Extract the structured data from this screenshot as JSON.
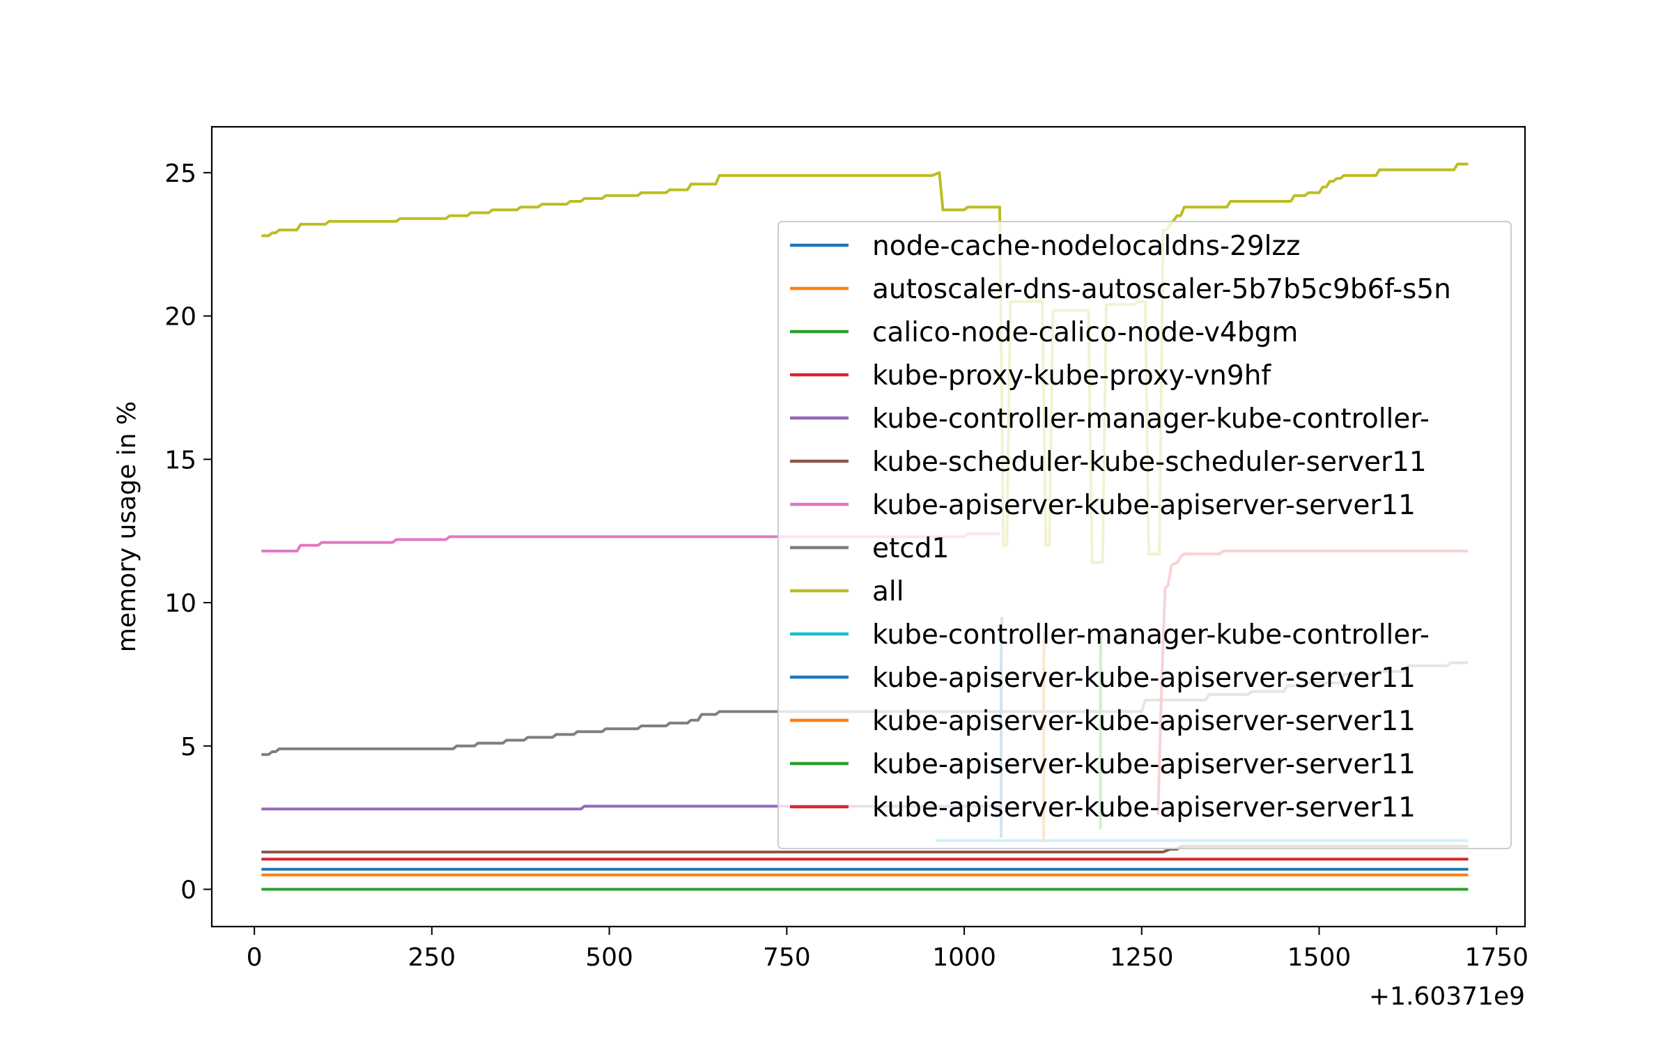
{
  "chart_data": {
    "type": "line",
    "xlabel": "",
    "ylabel": "memory usage in %",
    "x_offset_label": "+1.60371e9",
    "xlim": [
      -60,
      1790
    ],
    "ylim": [
      -1.3,
      26.6
    ],
    "x_ticks": [
      0,
      250,
      500,
      750,
      1000,
      1250,
      1500,
      1750
    ],
    "y_ticks": [
      0,
      5,
      10,
      15,
      20,
      25
    ],
    "grid": false,
    "legend_position": "upper right",
    "series": [
      {
        "name": "node-cache-nodelocaldns-29lzz",
        "color": "#1f77b4",
        "x": [
          10,
          1710
        ],
        "y": [
          0.7,
          0.7
        ]
      },
      {
        "name": "autoscaler-dns-autoscaler-5b7b5c9b6f-s5n",
        "color": "#ff7f0e",
        "x": [
          10,
          1710
        ],
        "y": [
          0.5,
          0.5
        ]
      },
      {
        "name": "calico-node-calico-node-v4bgm",
        "color": "#2ca02c",
        "x": [
          10,
          1710
        ],
        "y": [
          0.0,
          0.0
        ]
      },
      {
        "name": "kube-proxy-kube-proxy-vn9hf",
        "color": "#d62728",
        "x": [
          10,
          1710
        ],
        "y": [
          1.05,
          1.05
        ]
      },
      {
        "name": "kube-controller-manager-kube-controller-",
        "color": "#9467bd",
        "x": [
          10,
          460,
          465,
          1050
        ],
        "y": [
          2.8,
          2.8,
          2.9,
          2.9
        ]
      },
      {
        "name": "kube-scheduler-kube-scheduler-server11",
        "color": "#8c564b",
        "x": [
          10,
          1280,
          1290,
          1300,
          1305,
          1710
        ],
        "y": [
          1.3,
          1.3,
          1.4,
          1.4,
          1.5,
          1.5
        ]
      },
      {
        "name": "kube-apiserver-kube-apiserver-server11",
        "color": "#e377c2",
        "x": [
          10,
          60,
          65,
          90,
          95,
          195,
          200,
          270,
          275,
          1000,
          1005,
          1050
        ],
        "y": [
          11.8,
          11.8,
          12.0,
          12.0,
          12.1,
          12.1,
          12.2,
          12.2,
          12.3,
          12.3,
          12.4,
          12.4
        ]
      },
      {
        "name": "etcd1",
        "color": "#7f7f7f",
        "x": [
          10,
          20,
          25,
          30,
          35,
          280,
          285,
          310,
          315,
          350,
          355,
          380,
          385,
          420,
          425,
          450,
          455,
          490,
          495,
          540,
          545,
          580,
          585,
          610,
          615,
          625,
          630,
          650,
          655,
          1250,
          1255,
          1340,
          1345,
          1400,
          1405,
          1450,
          1455,
          1480,
          1485,
          1530,
          1535,
          1580,
          1585,
          1620,
          1625,
          1680,
          1685,
          1710
        ],
        "y": [
          4.7,
          4.7,
          4.8,
          4.8,
          4.9,
          4.9,
          5.0,
          5.0,
          5.1,
          5.1,
          5.2,
          5.2,
          5.3,
          5.3,
          5.4,
          5.4,
          5.5,
          5.5,
          5.6,
          5.6,
          5.7,
          5.7,
          5.8,
          5.8,
          5.9,
          5.9,
          6.1,
          6.1,
          6.2,
          6.2,
          6.6,
          6.6,
          6.8,
          6.8,
          6.9,
          6.9,
          7.1,
          7.1,
          7.2,
          7.2,
          7.5,
          7.5,
          7.6,
          7.6,
          7.8,
          7.8,
          7.9,
          7.9
        ]
      },
      {
        "name": "all",
        "color": "#bcbd22",
        "x": [
          10,
          20,
          25,
          30,
          35,
          60,
          65,
          100,
          105,
          200,
          205,
          270,
          275,
          300,
          305,
          330,
          335,
          370,
          375,
          400,
          405,
          440,
          445,
          460,
          465,
          490,
          495,
          540,
          545,
          580,
          585,
          610,
          615,
          650,
          655,
          955,
          965,
          970,
          1000,
          1005,
          1050,
          1055,
          1060,
          1065,
          1110,
          1115,
          1120,
          1125,
          1175,
          1180,
          1195,
          1200,
          1240,
          1245,
          1255,
          1260,
          1275,
          1280,
          1285,
          1300,
          1305,
          1310,
          1315,
          1370,
          1375,
          1400,
          1405,
          1410,
          1415,
          1460,
          1465,
          1480,
          1485,
          1500,
          1505,
          1510,
          1515,
          1520,
          1525,
          1530,
          1535,
          1550,
          1555,
          1580,
          1585,
          1690,
          1695,
          1710
        ],
        "y": [
          22.8,
          22.8,
          22.9,
          22.9,
          23.0,
          23.0,
          23.2,
          23.2,
          23.3,
          23.3,
          23.4,
          23.4,
          23.5,
          23.5,
          23.6,
          23.6,
          23.7,
          23.7,
          23.8,
          23.8,
          23.9,
          23.9,
          24.0,
          24.0,
          24.1,
          24.1,
          24.2,
          24.2,
          24.3,
          24.3,
          24.4,
          24.4,
          24.6,
          24.6,
          24.9,
          24.9,
          25.0,
          23.7,
          23.7,
          23.8,
          23.8,
          12.0,
          12.0,
          20.5,
          20.5,
          12.0,
          12.0,
          20.2,
          20.2,
          11.4,
          11.4,
          20.4,
          20.4,
          20.5,
          20.5,
          11.7,
          11.7,
          23.0,
          23.0,
          23.5,
          23.5,
          23.8,
          23.8,
          23.8,
          24.0,
          24.0,
          24.0,
          24.0,
          24.0,
          24.0,
          24.2,
          24.2,
          24.3,
          24.3,
          24.5,
          24.5,
          24.7,
          24.7,
          24.8,
          24.8,
          24.9,
          24.9,
          24.9,
          24.9,
          25.1,
          25.1,
          25.3,
          25.3
        ]
      },
      {
        "name": "kube-controller-manager-kube-controller-",
        "color": "#17becf",
        "x": [
          960,
          1710
        ],
        "y": [
          1.7,
          1.7
        ]
      },
      {
        "name": "kube-apiserver-kube-apiserver-server11",
        "color": "#1f77b4",
        "x": [
          1052,
          1052,
          1053
        ],
        "y": [
          1.8,
          8.0,
          9.5
        ]
      },
      {
        "name": "kube-apiserver-kube-apiserver-server11",
        "color": "#ff7f0e",
        "x": [
          1112,
          1112,
          1113
        ],
        "y": [
          1.7,
          8.0,
          9.0
        ]
      },
      {
        "name": "kube-apiserver-kube-apiserver-server11",
        "color": "#2ca02c",
        "x": [
          1192,
          1192,
          1193
        ],
        "y": [
          2.1,
          8.0,
          9.0
        ]
      },
      {
        "name": "kube-apiserver-kube-apiserver-server11",
        "color": "#d62728",
        "x": [
          1273,
          1278,
          1283,
          1287,
          1292,
          1300,
          1305,
          1310,
          1360,
          1365,
          1710
        ],
        "y": [
          2.6,
          7.0,
          10.5,
          10.6,
          11.3,
          11.4,
          11.6,
          11.7,
          11.7,
          11.8,
          11.8
        ]
      }
    ]
  }
}
